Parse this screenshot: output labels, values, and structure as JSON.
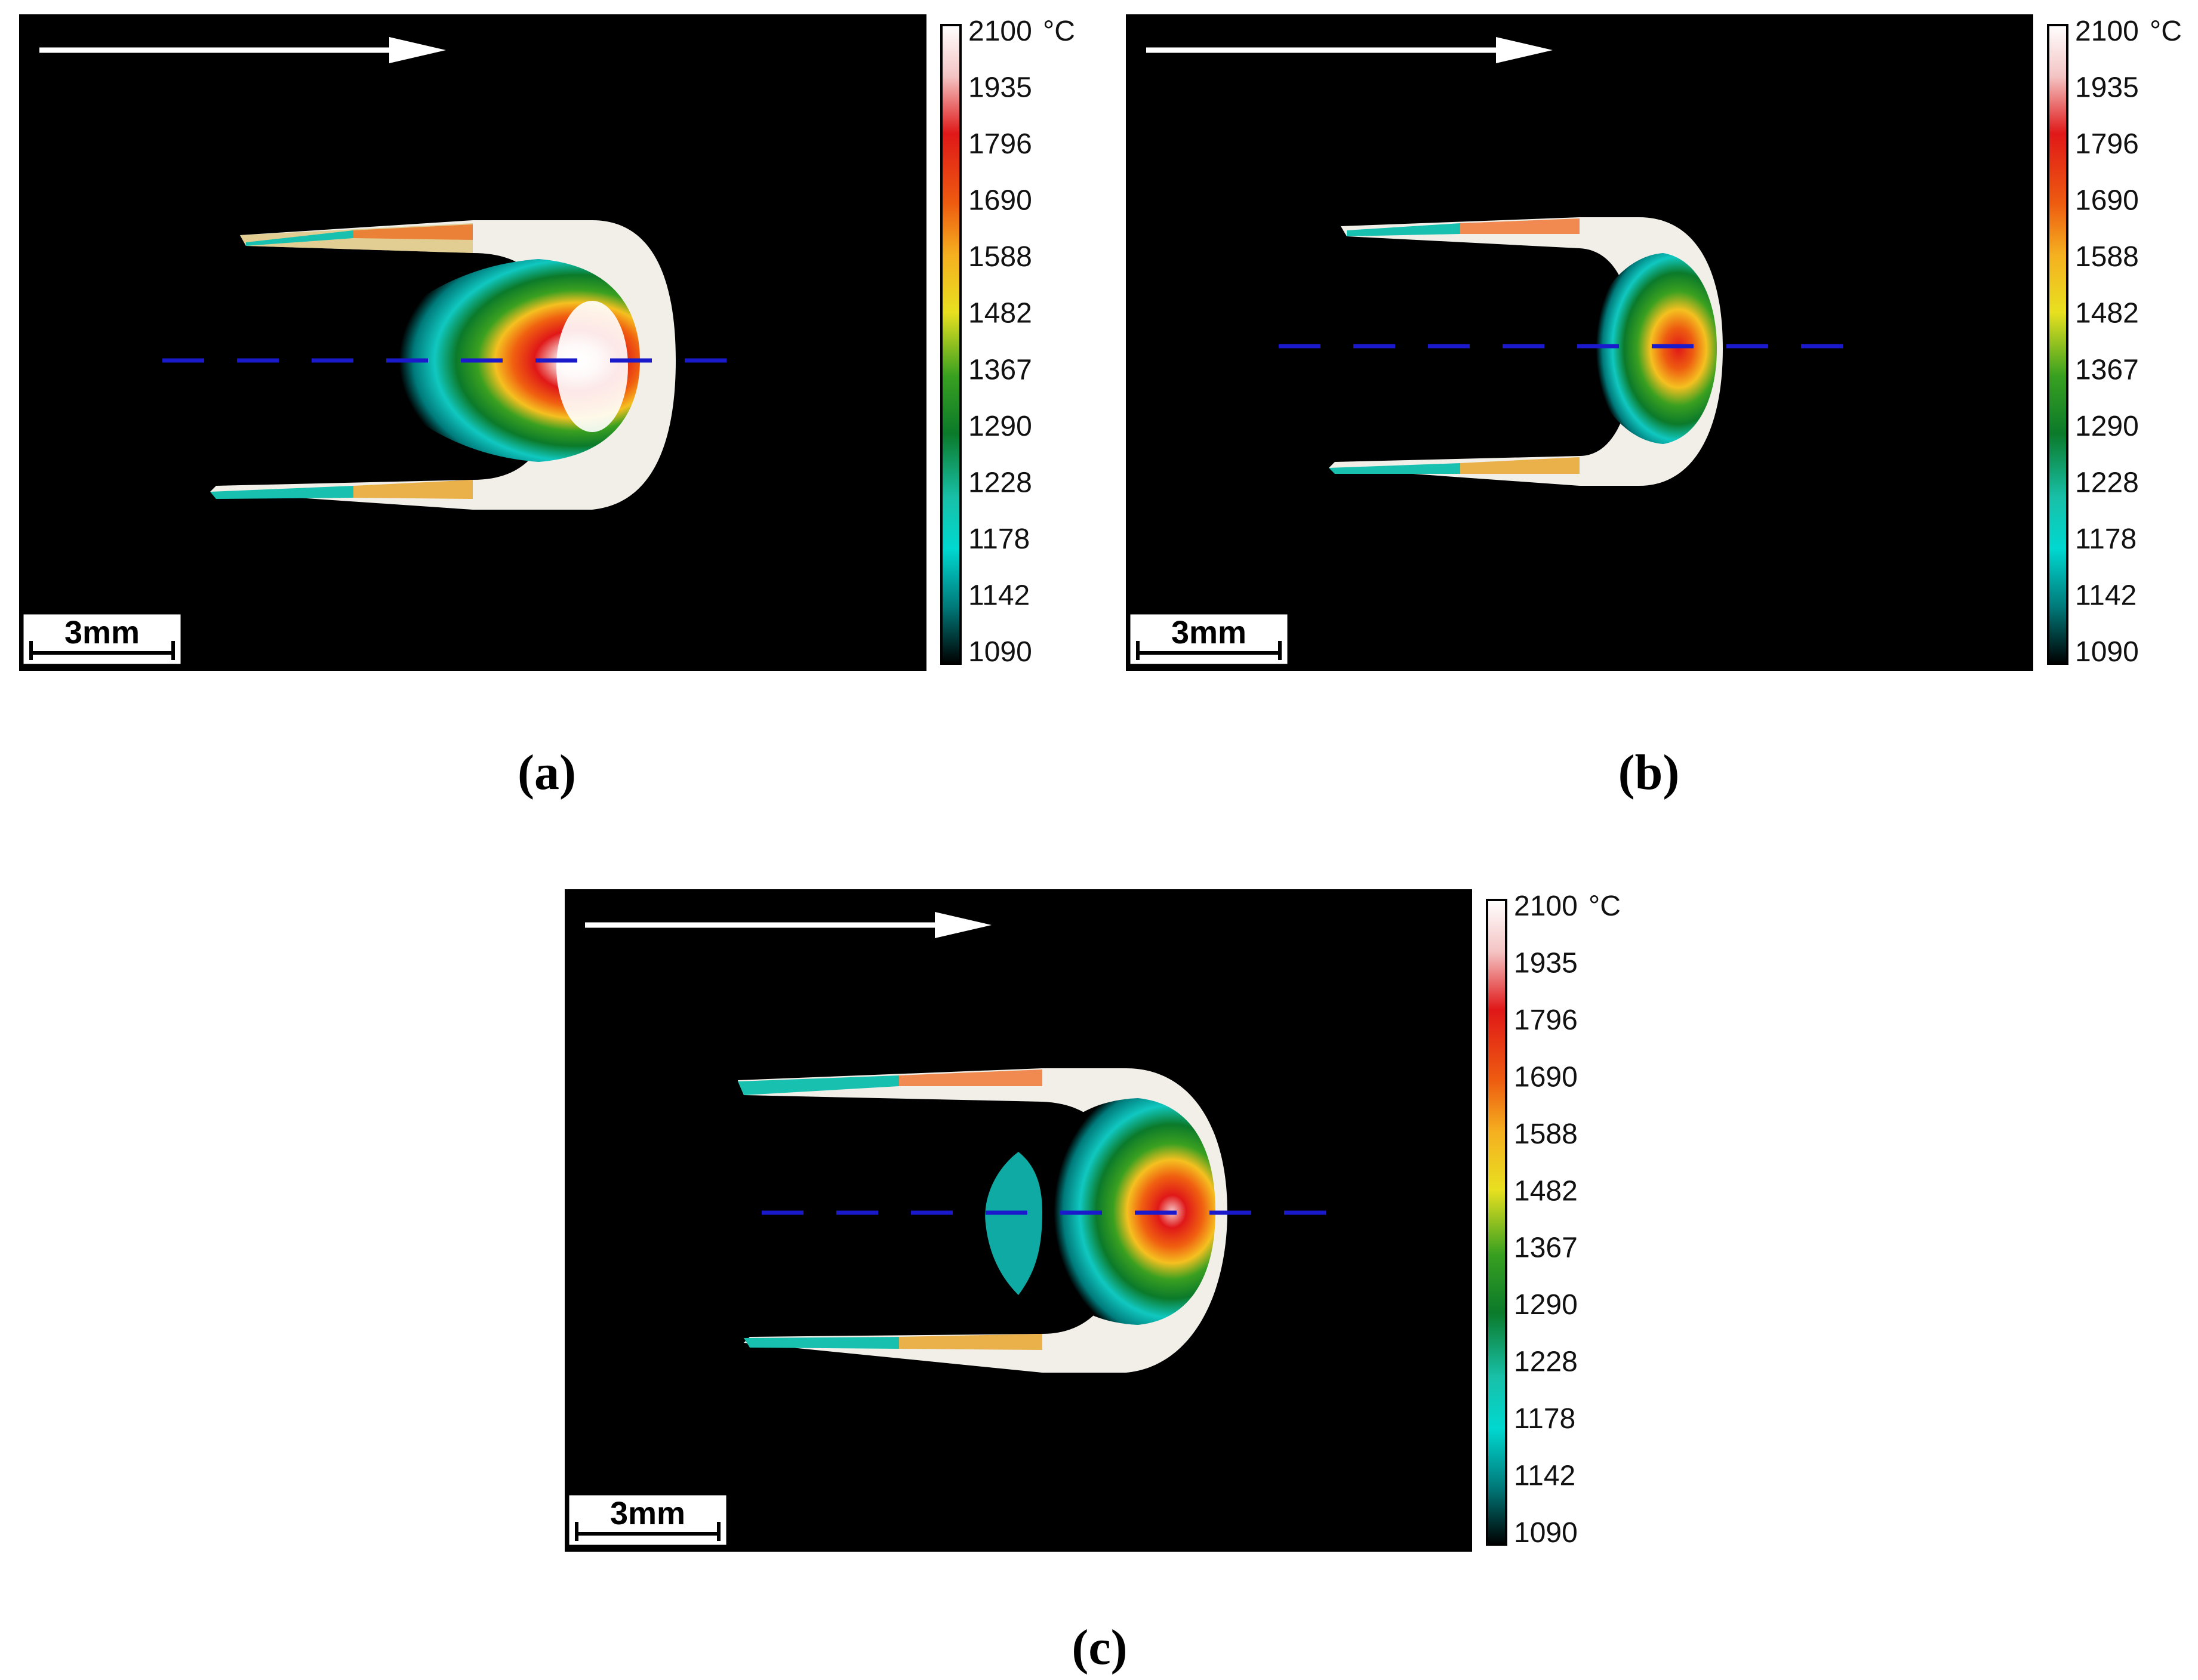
{
  "panels": [
    {
      "id": "a",
      "caption": "(a)",
      "scale_bar_label": "3mm"
    },
    {
      "id": "b",
      "caption": "(b)",
      "scale_bar_label": "3mm"
    },
    {
      "id": "c",
      "caption": "(c)",
      "scale_bar_label": "3mm"
    }
  ],
  "colorbar": {
    "unit": "°C",
    "ticks": [
      "2100",
      "1935",
      "1796",
      "1690",
      "1588",
      "1482",
      "1367",
      "1290",
      "1228",
      "1178",
      "1142",
      "1090"
    ],
    "colors": [
      "#ffffff",
      "#f4c4c4",
      "#e01818",
      "#ee5c10",
      "#f5b020",
      "#e8e020",
      "#38a020",
      "#0b7a2a",
      "#18c0a8",
      "#00d8d0",
      "#007b7b",
      "#000000"
    ]
  },
  "colors": {
    "background": "#000000",
    "arrow": "#ffffff",
    "dashed_line": "#1a1acc"
  }
}
